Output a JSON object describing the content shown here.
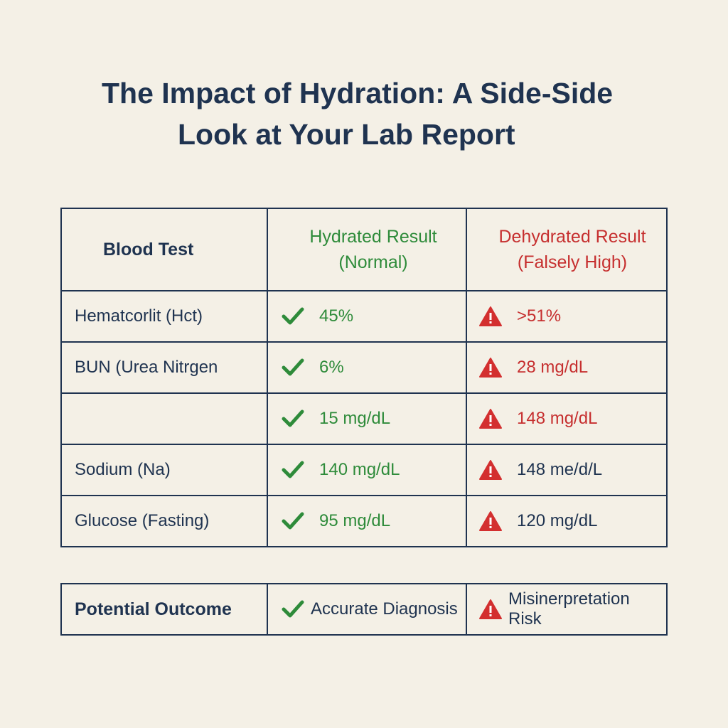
{
  "header": {
    "title_lines": [
      "The Impact of Hydration: A Side-Side",
      "Look at Your Lab Report"
    ]
  },
  "table": {
    "columns": [
      [
        "Blood Test"
      ],
      [
        "Hydrated Result",
        "(Normal)"
      ],
      [
        "Dehydrated Result",
        "(Falsely High)"
      ]
    ],
    "column_colors": [
      "#1f3350",
      "#2e8b3a",
      "#c62f2f"
    ],
    "rows": [
      {
        "test": "Hematcorlit (Hct)",
        "hydrated": "45%",
        "dehydrated": ">51%",
        "dehydrated_color": "#c62f2f"
      },
      {
        "test": "BUN (Urea Nitrgen",
        "hydrated": "6%",
        "dehydrated": "28 mg/dL",
        "dehydrated_color": "#c62f2f"
      },
      {
        "test": null,
        "hydrated": "15 mg/dL",
        "dehydrated": "148 mg/dL",
        "dehydrated_color": "#c62f2f"
      },
      {
        "test": "Sodium (Na)",
        "hydrated": "140 mg/dL",
        "dehydrated": "148 me/d/L",
        "dehydrated_color": "#1f3350"
      },
      {
        "test": "Glucose (Fasting)",
        "hydrated": "95 mg/dL",
        "dehydrated": "120 mg/dL",
        "dehydrated_color": "#1f3350"
      }
    ]
  },
  "outcome": {
    "label": "Potential Outcome",
    "hydrated": "Accurate Diagnosis",
    "dehydrated": "Misinerpretation Risk"
  }
}
